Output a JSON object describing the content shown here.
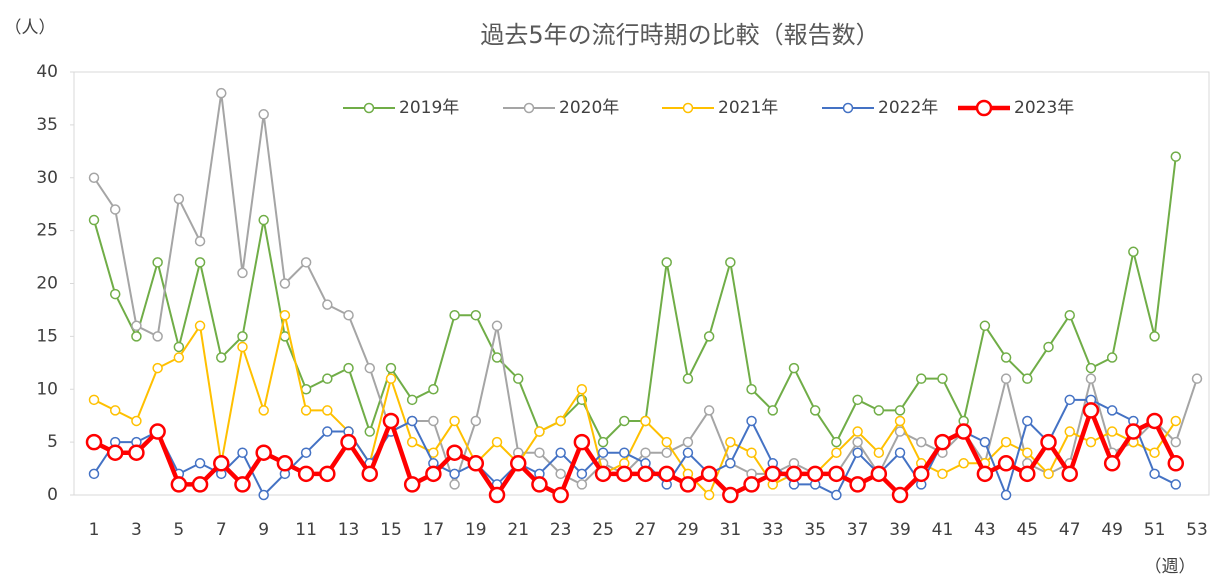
{
  "chart_data": {
    "type": "line",
    "title": "過去5年の流行時期の比較（報告数）",
    "y_label": "（人）",
    "x_label": "（週）",
    "categories": [
      1,
      null,
      3,
      null,
      5,
      null,
      7,
      null,
      9,
      null,
      11,
      null,
      13,
      null,
      15,
      null,
      17,
      null,
      19,
      null,
      21,
      null,
      23,
      null,
      25,
      null,
      27,
      null,
      29,
      null,
      31,
      null,
      33,
      null,
      35,
      null,
      37,
      null,
      39,
      null,
      41,
      null,
      43,
      null,
      45,
      null,
      47,
      null,
      49,
      null,
      51,
      null,
      53
    ],
    "ylim": [
      0,
      40
    ],
    "yticks": [
      0,
      5,
      10,
      15,
      20,
      25,
      30,
      35,
      40
    ],
    "grid": false,
    "legend": "top",
    "series": [
      {
        "name": "2019年",
        "color": "#70ad47",
        "values": [
          26,
          19,
          15,
          22,
          14,
          22,
          13,
          15,
          26,
          15,
          10,
          11,
          12,
          6,
          12,
          9,
          10,
          17,
          17,
          13,
          11,
          6,
          7,
          9,
          5,
          7,
          7,
          22,
          11,
          15,
          22,
          10,
          8,
          12,
          8,
          5,
          9,
          8,
          8,
          11,
          11,
          7,
          16,
          13,
          11,
          14,
          17,
          12,
          13,
          23,
          15,
          32,
          null
        ]
      },
      {
        "name": "2020年",
        "color": "#a5a5a5",
        "values": [
          30,
          27,
          16,
          15,
          28,
          24,
          38,
          21,
          36,
          20,
          22,
          18,
          17,
          12,
          6,
          7,
          7,
          1,
          7,
          16,
          4,
          4,
          2,
          1,
          3,
          2,
          4,
          4,
          5,
          8,
          3,
          2,
          2,
          3,
          2,
          2,
          5,
          2,
          6,
          5,
          4,
          6,
          3,
          11,
          3,
          2,
          3,
          11,
          4,
          5,
          7,
          5,
          11
        ]
      },
      {
        "name": "2021年",
        "color": "#ffc000",
        "values": [
          9,
          8,
          7,
          12,
          13,
          16,
          3,
          14,
          8,
          17,
          8,
          8,
          6,
          3,
          11,
          5,
          4,
          7,
          3,
          5,
          3,
          6,
          7,
          10,
          2,
          3,
          7,
          5,
          2,
          0,
          5,
          4,
          1,
          2,
          2,
          4,
          6,
          4,
          7,
          3,
          2,
          3,
          3,
          5,
          4,
          2,
          6,
          5,
          6,
          5,
          4,
          7,
          null
        ]
      },
      {
        "name": "2022年",
        "color": "#4472c4",
        "values": [
          2,
          5,
          5,
          6,
          2,
          3,
          2,
          4,
          0,
          2,
          4,
          6,
          6,
          3,
          6,
          7,
          3,
          2,
          3,
          1,
          3,
          2,
          4,
          2,
          4,
          4,
          3,
          1,
          4,
          2,
          3,
          7,
          3,
          1,
          1,
          0,
          4,
          2,
          4,
          1,
          5,
          6,
          5,
          0,
          7,
          5,
          9,
          9,
          8,
          7,
          2,
          1,
          null
        ]
      },
      {
        "name": "2023年",
        "color": "#ff0000",
        "values": [
          5,
          4,
          4,
          6,
          1,
          1,
          3,
          1,
          4,
          3,
          2,
          2,
          5,
          2,
          7,
          1,
          2,
          4,
          3,
          0,
          3,
          1,
          0,
          5,
          2,
          2,
          2,
          2,
          1,
          2,
          0,
          1,
          2,
          2,
          2,
          2,
          1,
          2,
          0,
          2,
          5,
          6,
          2,
          3,
          2,
          5,
          2,
          8,
          3,
          6,
          7,
          3,
          null
        ]
      }
    ]
  }
}
